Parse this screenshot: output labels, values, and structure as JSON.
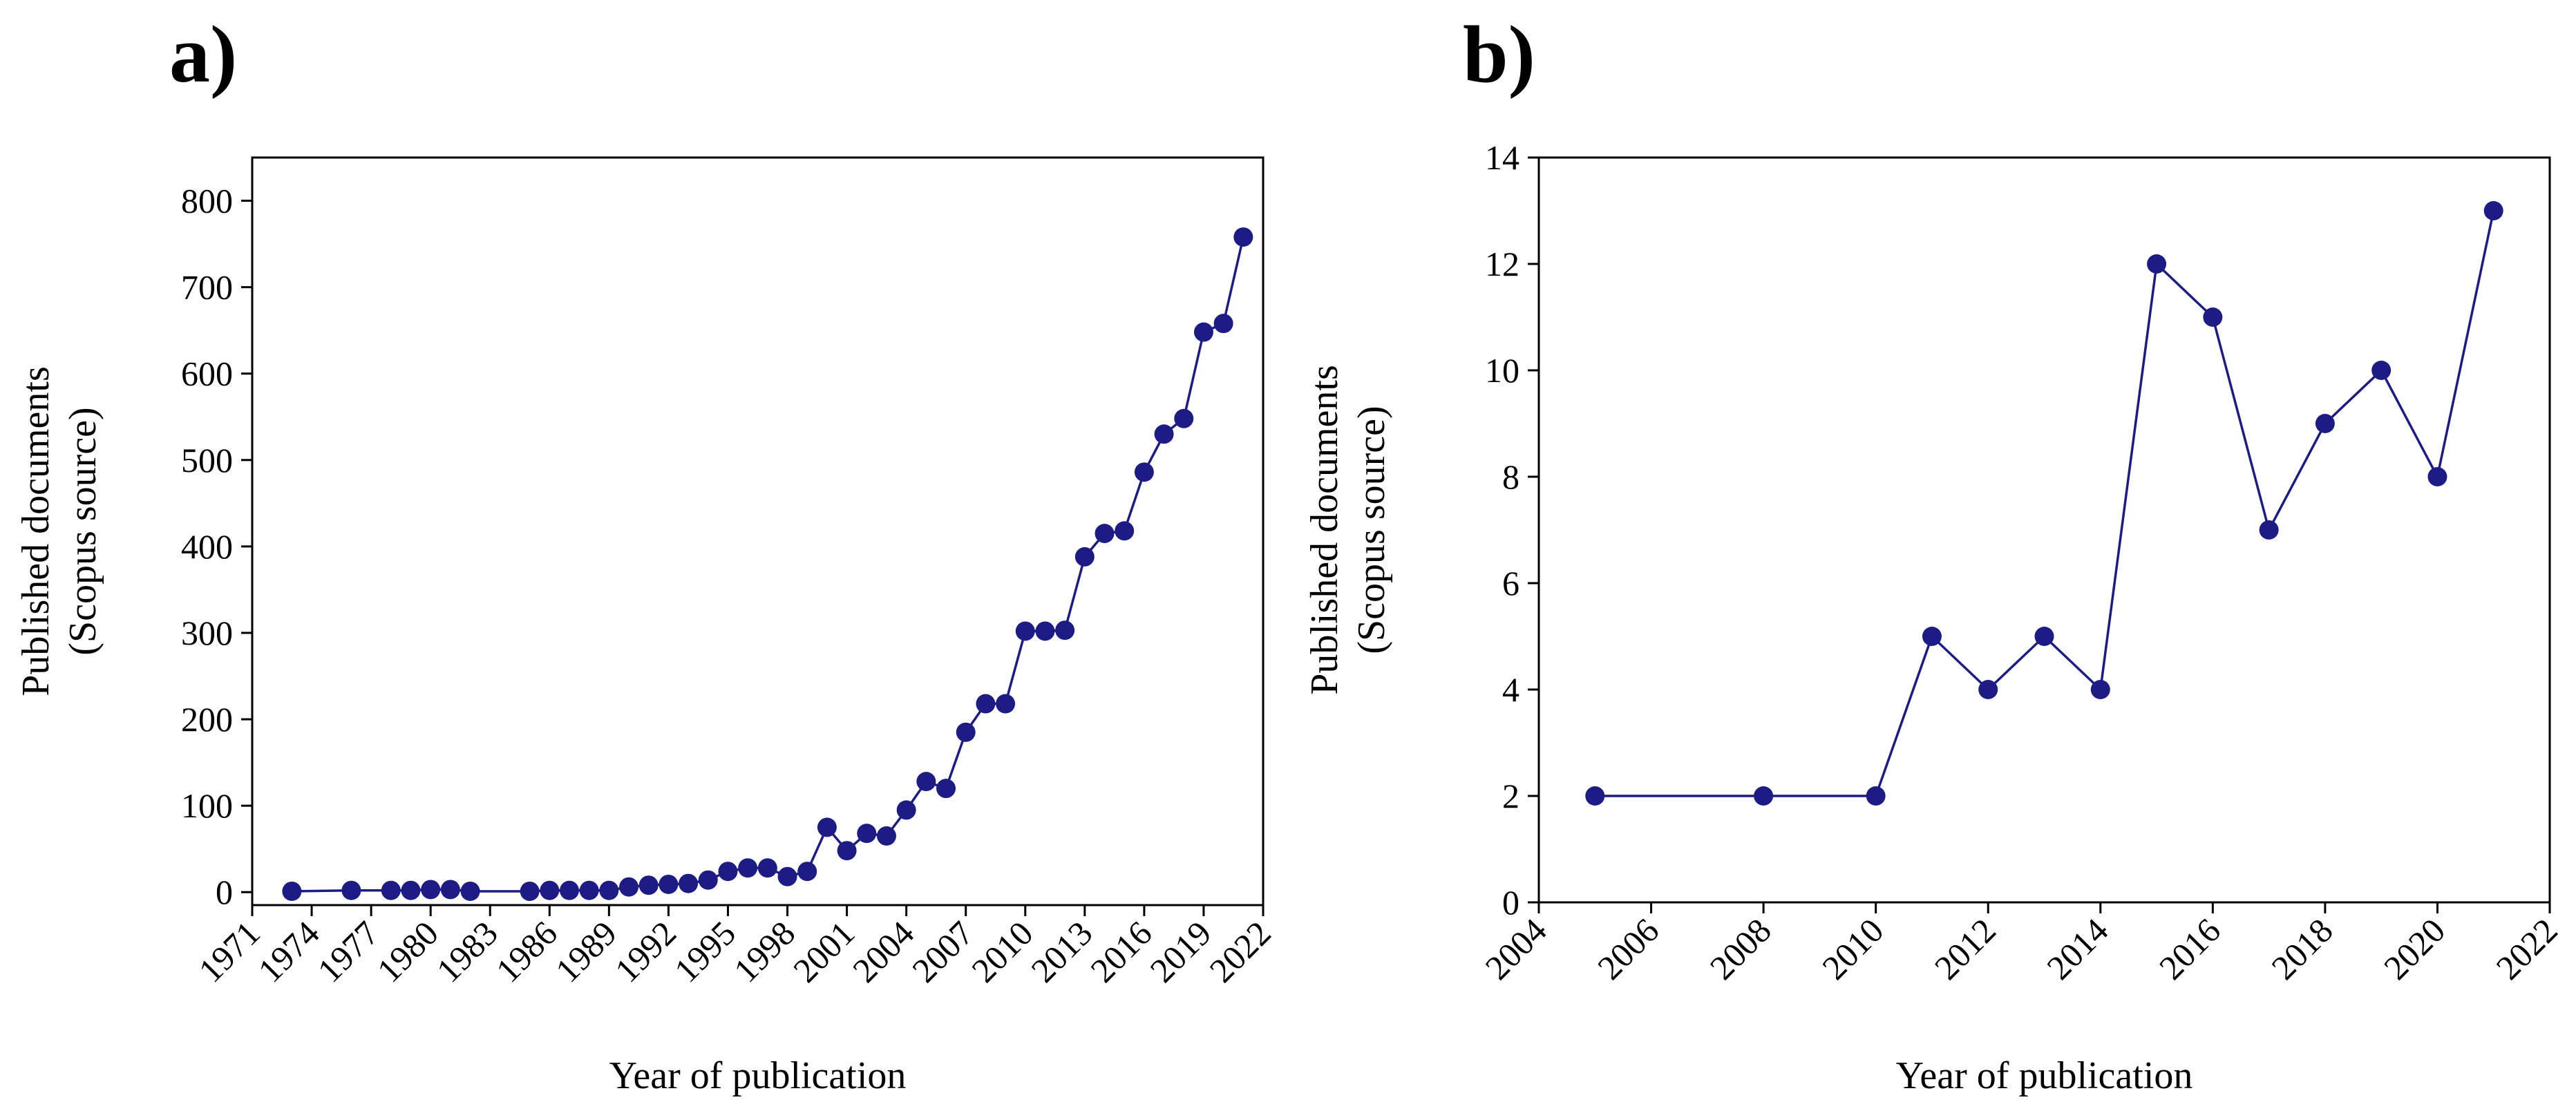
{
  "colors": {
    "series": "#1c1c84",
    "axis": "#000000",
    "background": "#ffffff"
  },
  "chart_data": [
    {
      "panel_label": "a)",
      "type": "line",
      "markers": true,
      "xlabel": "Year of publication",
      "ylabel_lines": [
        "Published documents",
        "(Scopus source)"
      ],
      "xlim": [
        1971,
        2022
      ],
      "ylim": [
        -15,
        850
      ],
      "x_ticks": [
        1971,
        1974,
        1977,
        1980,
        1983,
        1986,
        1989,
        1992,
        1995,
        1998,
        2001,
        2004,
        2007,
        2010,
        2013,
        2016,
        2019,
        2022
      ],
      "y_ticks": [
        0,
        100,
        200,
        300,
        400,
        500,
        600,
        700,
        800
      ],
      "grid": false,
      "x": [
        1973,
        1976,
        1978,
        1979,
        1980,
        1981,
        1982,
        1985,
        1986,
        1987,
        1988,
        1989,
        1990,
        1991,
        1992,
        1993,
        1994,
        1995,
        1996,
        1997,
        1998,
        1999,
        2000,
        2001,
        2002,
        2003,
        2004,
        2005,
        2006,
        2007,
        2008,
        2009,
        2010,
        2011,
        2012,
        2013,
        2014,
        2015,
        2016,
        2017,
        2018,
        2019,
        2020,
        2021
      ],
      "y": [
        1,
        2,
        2,
        2,
        3,
        3,
        1,
        1,
        2,
        2,
        2,
        2,
        6,
        8,
        9,
        10,
        14,
        24,
        28,
        28,
        18,
        24,
        75,
        48,
        68,
        65,
        95,
        128,
        120,
        185,
        218,
        218,
        302,
        302,
        303,
        388,
        415,
        418,
        486,
        530,
        548,
        648,
        658,
        758
      ]
    },
    {
      "panel_label": "b)",
      "type": "line",
      "markers": true,
      "xlabel": "Year of publication",
      "ylabel_lines": [
        "Published documents",
        "(Scopus source)"
      ],
      "xlim": [
        2004,
        2022
      ],
      "ylim": [
        0,
        14
      ],
      "x_ticks": [
        2004,
        2006,
        2008,
        2010,
        2012,
        2014,
        2016,
        2018,
        2020,
        2022
      ],
      "y_ticks": [
        0,
        2,
        4,
        6,
        8,
        10,
        12,
        14
      ],
      "grid": false,
      "x": [
        2005,
        2008,
        2010,
        2011,
        2012,
        2013,
        2014,
        2015,
        2016,
        2017,
        2018,
        2019,
        2020,
        2021
      ],
      "y": [
        2,
        2,
        2,
        5,
        4,
        5,
        4,
        12,
        11,
        7,
        9,
        10,
        8,
        13
      ]
    }
  ]
}
